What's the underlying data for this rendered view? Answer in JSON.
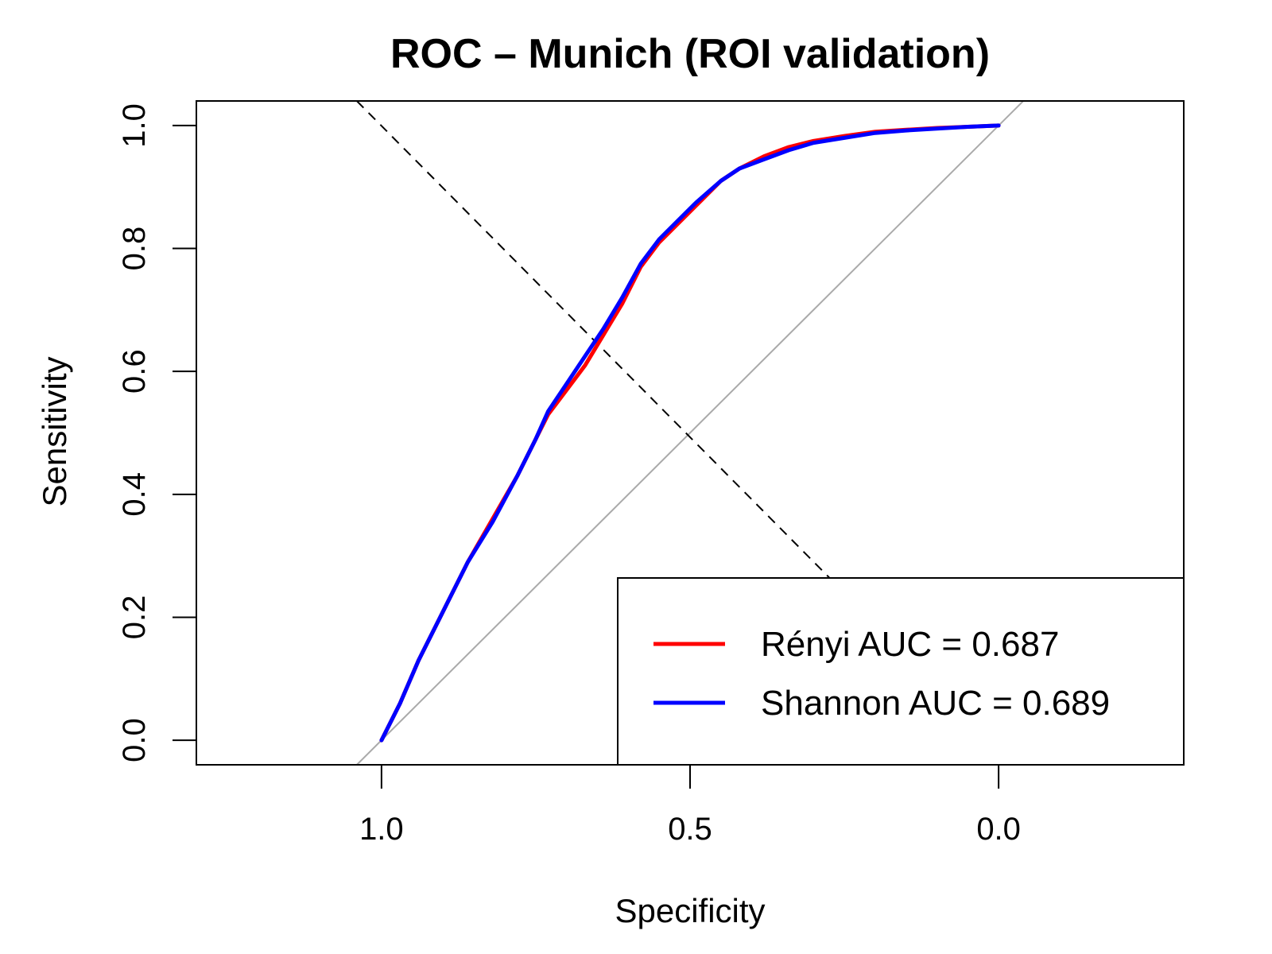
{
  "chart_data": {
    "type": "line",
    "title": "ROC – Munich (ROI validation)",
    "xlabel": "Specificity",
    "ylabel": "Sensitivity",
    "x_reversed": true,
    "xlim": [
      1.3,
      -0.3
    ],
    "ylim": [
      -0.04,
      1.04
    ],
    "x_ticks": [
      1.0,
      0.5,
      0.0
    ],
    "x_tick_labels": [
      "1.0",
      "0.5",
      "0.0"
    ],
    "y_ticks": [
      0.0,
      0.2,
      0.4,
      0.6,
      0.8,
      1.0
    ],
    "y_tick_labels": [
      "0.0",
      "0.2",
      "0.4",
      "0.6",
      "0.8",
      "1.0"
    ],
    "grid": false,
    "legend_position": "bottom-right",
    "reference_lines": [
      {
        "style": "solid",
        "color": "#aaaaaa",
        "from": [
          1.04,
          -0.04
        ],
        "to": [
          -0.04,
          1.04
        ]
      },
      {
        "style": "dashed",
        "color": "#000000",
        "from": [
          1.04,
          1.04
        ],
        "to": [
          0.27,
          0.26
        ]
      }
    ],
    "series": [
      {
        "name": "Rényi",
        "label": "Rényi  AUC = 0.687",
        "auc": 0.687,
        "color": "#ff0000",
        "specificity": [
          1.0,
          0.97,
          0.94,
          0.9,
          0.86,
          0.82,
          0.78,
          0.75,
          0.73,
          0.7,
          0.67,
          0.64,
          0.61,
          0.58,
          0.55,
          0.52,
          0.49,
          0.45,
          0.42,
          0.38,
          0.34,
          0.3,
          0.25,
          0.2,
          0.15,
          0.1,
          0.05,
          0.0
        ],
        "sensitivity": [
          0.0,
          0.06,
          0.13,
          0.21,
          0.29,
          0.36,
          0.43,
          0.49,
          0.53,
          0.57,
          0.61,
          0.66,
          0.71,
          0.77,
          0.81,
          0.84,
          0.87,
          0.91,
          0.93,
          0.95,
          0.965,
          0.975,
          0.983,
          0.99,
          0.993,
          0.996,
          0.998,
          1.0
        ]
      },
      {
        "name": "Shannon",
        "label": "Shannon AUC = 0.689",
        "auc": 0.689,
        "color": "#0000ff",
        "specificity": [
          1.0,
          0.97,
          0.94,
          0.9,
          0.86,
          0.82,
          0.78,
          0.75,
          0.73,
          0.7,
          0.67,
          0.64,
          0.61,
          0.58,
          0.55,
          0.52,
          0.49,
          0.45,
          0.42,
          0.38,
          0.34,
          0.3,
          0.25,
          0.2,
          0.15,
          0.1,
          0.05,
          0.0
        ],
        "sensitivity": [
          0.0,
          0.06,
          0.13,
          0.21,
          0.29,
          0.355,
          0.43,
          0.49,
          0.535,
          0.58,
          0.625,
          0.67,
          0.72,
          0.775,
          0.815,
          0.845,
          0.875,
          0.91,
          0.93,
          0.945,
          0.96,
          0.972,
          0.98,
          0.988,
          0.992,
          0.995,
          0.998,
          1.0
        ]
      }
    ]
  }
}
